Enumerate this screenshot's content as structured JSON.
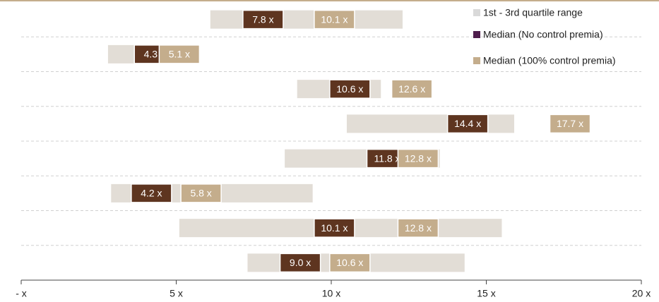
{
  "chart_data": {
    "type": "range_bar",
    "categories": [
      null,
      null,
      null,
      null,
      null,
      null,
      null,
      null
    ],
    "series": [
      {
        "name": "1st - 3rd quartile range",
        "color": "#e2ddd6",
        "legend_color": "#d9d9d9",
        "low": [
          6.1,
          2.8,
          8.9,
          10.5,
          8.5,
          2.9,
          5.1,
          7.3
        ],
        "high": [
          12.3,
          5.6,
          11.6,
          15.9,
          13.5,
          9.4,
          15.5,
          14.3
        ]
      },
      {
        "name": "Median (No control premia)",
        "color": "#5e3520",
        "legend_color": "#4e1d4c",
        "values": [
          7.8,
          4.3,
          10.6,
          14.4,
          11.8,
          4.2,
          10.1,
          9.0
        ],
        "value_labels": [
          "7.8 x",
          "4.3 x",
          "10.6 x",
          "14.4 x",
          "11.8 x",
          "4.2 x",
          "10.1 x",
          "9.0 x"
        ]
      },
      {
        "name": "Median (100% control premia)",
        "color": "#c4ad8c",
        "legend_color": "#c4ad8c",
        "values": [
          10.1,
          5.1,
          12.6,
          17.7,
          12.8,
          5.8,
          12.8,
          10.6
        ],
        "value_labels": [
          "10.1 x",
          "5.1 x",
          "12.6 x",
          "17.7 x",
          "12.8 x",
          "5.8 x",
          "12.8 x",
          "10.6 x"
        ]
      }
    ],
    "xlim": [
      0,
      20
    ],
    "xticks": [
      {
        "value": 0,
        "label": "- x"
      },
      {
        "value": 5,
        "label": "5 x"
      },
      {
        "value": 10,
        "label": "10 x"
      },
      {
        "value": 15,
        "label": "15 x"
      },
      {
        "value": 20,
        "label": "20 x"
      }
    ]
  }
}
